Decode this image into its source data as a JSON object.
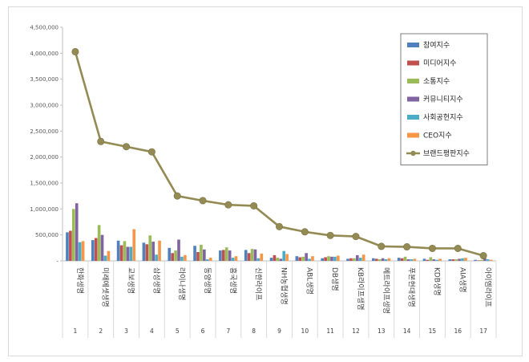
{
  "chart_data": {
    "type": "bar",
    "y_ticks": [
      "-",
      "500,000",
      "1,000,000",
      "1,500,000",
      "2,000,000",
      "2,500,000",
      "3,000,000",
      "3,500,000",
      "4,000,000",
      "4,500,000"
    ],
    "ylim": [
      0,
      4500000
    ],
    "categories": [
      "한화생명",
      "미래에셋생명",
      "교보생명",
      "삼성생명",
      "라이나생명",
      "동양생명",
      "흥국생명",
      "신한라이프",
      "NH농협생명",
      "ABL생명",
      "DB생명",
      "KB라이프생명",
      "메트라이프생명",
      "푸본현대생명",
      "KDB생명",
      "AIA생명",
      "아이엠라이프"
    ],
    "ranks": [
      "1",
      "2",
      "3",
      "4",
      "5",
      "6",
      "7",
      "8",
      "9",
      "10",
      "11",
      "12",
      "13",
      "14",
      "15",
      "16",
      "17"
    ],
    "series": [
      {
        "name": "참여지수",
        "color": "#4f81bd",
        "values": [
          550000,
          400000,
          390000,
          350000,
          250000,
          290000,
          200000,
          210000,
          60000,
          90000,
          50000,
          40000,
          50000,
          60000,
          40000,
          30000,
          20000
        ]
      },
      {
        "name": "미디어지수",
        "color": "#c0504d",
        "values": [
          580000,
          440000,
          300000,
          320000,
          150000,
          170000,
          210000,
          150000,
          110000,
          70000,
          70000,
          50000,
          40000,
          50000,
          20000,
          30000,
          10000
        ]
      },
      {
        "name": "소통지수",
        "color": "#9bbb59",
        "values": [
          1000000,
          690000,
          380000,
          490000,
          200000,
          310000,
          260000,
          230000,
          60000,
          80000,
          90000,
          50000,
          30000,
          80000,
          70000,
          30000,
          20000
        ]
      },
      {
        "name": "커뮤니티지수",
        "color": "#8064a2",
        "values": [
          1110000,
          500000,
          270000,
          370000,
          410000,
          220000,
          200000,
          220000,
          40000,
          150000,
          80000,
          110000,
          50000,
          30000,
          30000,
          40000,
          50000
        ]
      },
      {
        "name": "사회공헌지수",
        "color": "#4bacc6",
        "values": [
          360000,
          100000,
          270000,
          120000,
          80000,
          30000,
          60000,
          50000,
          190000,
          40000,
          80000,
          60000,
          30000,
          30000,
          20000,
          50000,
          30000
        ]
      },
      {
        "name": "CEO지수",
        "color": "#f79646",
        "values": [
          380000,
          190000,
          610000,
          390000,
          110000,
          60000,
          90000,
          140000,
          130000,
          90000,
          100000,
          120000,
          50000,
          40000,
          40000,
          60000,
          20000
        ]
      },
      {
        "name": "브랜드평판지수",
        "type": "line",
        "color": "#948a54",
        "values": [
          4030000,
          2300000,
          2200000,
          2100000,
          1250000,
          1160000,
          1080000,
          1060000,
          660000,
          560000,
          490000,
          470000,
          280000,
          270000,
          240000,
          240000,
          100000
        ]
      }
    ],
    "legend": "right-top, boxed",
    "grid": false
  }
}
